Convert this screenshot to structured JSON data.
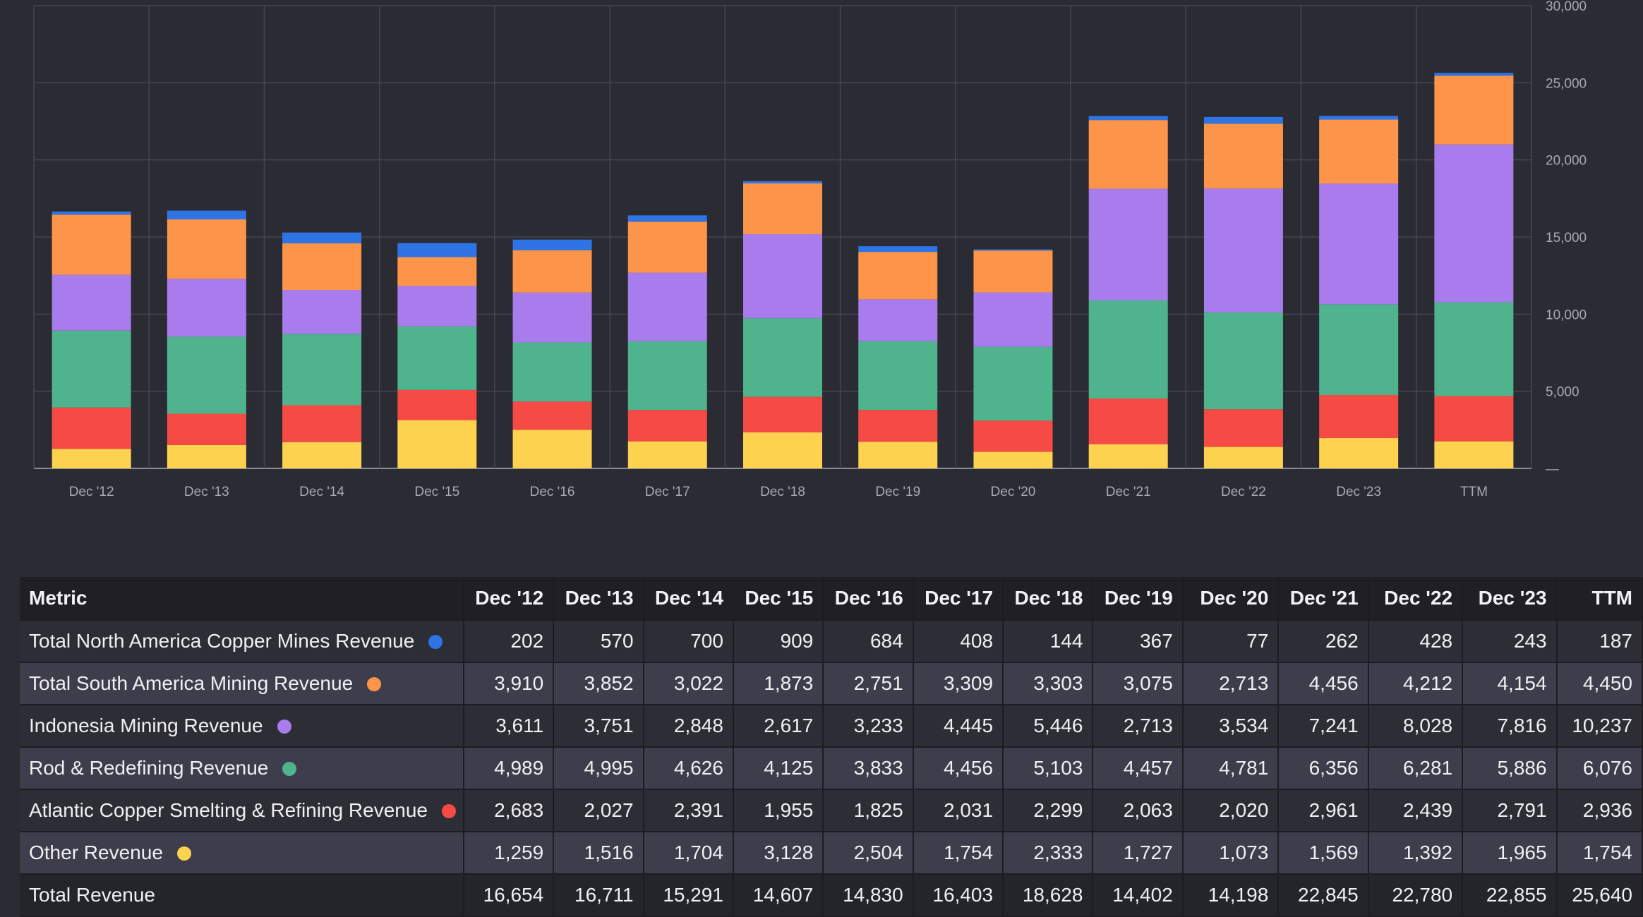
{
  "chart_data": {
    "type": "bar",
    "stacked": true,
    "categories": [
      "Dec '12",
      "Dec '13",
      "Dec '14",
      "Dec '15",
      "Dec '16",
      "Dec '17",
      "Dec '18",
      "Dec '19",
      "Dec '20",
      "Dec '21",
      "Dec '22",
      "Dec '23",
      "TTM"
    ],
    "series": [
      {
        "name": "Other Revenue",
        "color": "#fdd24e",
        "values": [
          1259,
          1516,
          1704,
          3128,
          2504,
          1754,
          2333,
          1727,
          1073,
          1569,
          1392,
          1965,
          1754
        ]
      },
      {
        "name": "Atlantic Copper Smelting & Refining Revenue",
        "color": "#f64b45",
        "values": [
          2683,
          2027,
          2391,
          1955,
          1825,
          2031,
          2299,
          2063,
          2020,
          2961,
          2439,
          2791,
          2936
        ]
      },
      {
        "name": "Rod & Redefining Revenue",
        "color": "#4fb38d",
        "values": [
          4989,
          4995,
          4626,
          4125,
          3833,
          4456,
          5103,
          4457,
          4781,
          6356,
          6281,
          5886,
          6076
        ]
      },
      {
        "name": "Indonesia Mining Revenue",
        "color": "#a87ced",
        "values": [
          3611,
          3751,
          2848,
          2617,
          3233,
          4445,
          5446,
          2713,
          3534,
          7241,
          8028,
          7816,
          10237
        ]
      },
      {
        "name": "Total South America Mining Revenue",
        "color": "#fc954a",
        "values": [
          3910,
          3852,
          3022,
          1873,
          2751,
          3309,
          3303,
          3075,
          2713,
          4456,
          4212,
          4154,
          4450
        ]
      },
      {
        "name": "Total North America Copper Mines Revenue",
        "color": "#2f74e4",
        "values": [
          202,
          570,
          700,
          909,
          684,
          408,
          144,
          367,
          77,
          262,
          428,
          243,
          187
        ]
      }
    ],
    "ylim": [
      0,
      30000
    ],
    "yticks": [
      "30,000",
      "25,000",
      "20,000",
      "15,000",
      "10,000",
      "5,000",
      "—"
    ],
    "ytick_values": [
      30000,
      25000,
      20000,
      15000,
      10000,
      5000,
      0
    ],
    "xticks": [
      "Dec '12",
      "Dec '13",
      "Dec '14",
      "Dec '15",
      "Dec '16",
      "Dec '17",
      "Dec '18",
      "Dec '19",
      "Dec '20",
      "Dec '21",
      "Dec '22",
      "Dec '23",
      "TTM"
    ],
    "grid": true
  },
  "table": {
    "header": {
      "metric": "Metric",
      "periods": [
        "Dec '12",
        "Dec '13",
        "Dec '14",
        "Dec '15",
        "Dec '16",
        "Dec '17",
        "Dec '18",
        "Dec '19",
        "Dec '20",
        "Dec '21",
        "Dec '22",
        "Dec '23",
        "TTM"
      ]
    },
    "rows": [
      {
        "metric": "Total North America Copper Mines Revenue",
        "dot_color": "#2f74e4",
        "values": [
          "202",
          "570",
          "700",
          "909",
          "684",
          "408",
          "144",
          "367",
          "77",
          "262",
          "428",
          "243",
          "187"
        ]
      },
      {
        "metric": "Total South America Mining Revenue",
        "dot_color": "#fc954a",
        "values": [
          "3,910",
          "3,852",
          "3,022",
          "1,873",
          "2,751",
          "3,309",
          "3,303",
          "3,075",
          "2,713",
          "4,456",
          "4,212",
          "4,154",
          "4,450"
        ]
      },
      {
        "metric": "Indonesia Mining Revenue",
        "dot_color": "#a87ced",
        "values": [
          "3,611",
          "3,751",
          "2,848",
          "2,617",
          "3,233",
          "4,445",
          "5,446",
          "2,713",
          "3,534",
          "7,241",
          "8,028",
          "7,816",
          "10,237"
        ]
      },
      {
        "metric": "Rod & Redefining Revenue",
        "dot_color": "#4fb38d",
        "values": [
          "4,989",
          "4,995",
          "4,626",
          "4,125",
          "3,833",
          "4,456",
          "5,103",
          "4,457",
          "4,781",
          "6,356",
          "6,281",
          "5,886",
          "6,076"
        ]
      },
      {
        "metric": "Atlantic Copper Smelting & Refining Revenue",
        "dot_color": "#f64b45",
        "values": [
          "2,683",
          "2,027",
          "2,391",
          "1,955",
          "1,825",
          "2,031",
          "2,299",
          "2,063",
          "2,020",
          "2,961",
          "2,439",
          "2,791",
          "2,936"
        ]
      },
      {
        "metric": "Other Revenue",
        "dot_color": "#fdd24e",
        "values": [
          "1,259",
          "1,516",
          "1,704",
          "3,128",
          "2,504",
          "1,754",
          "2,333",
          "1,727",
          "1,073",
          "1,569",
          "1,392",
          "1,965",
          "1,754"
        ]
      },
      {
        "metric": "Total Revenue",
        "dot_color": "",
        "values": [
          "16,654",
          "16,711",
          "15,291",
          "14,607",
          "14,830",
          "16,403",
          "18,628",
          "14,402",
          "14,198",
          "22,845",
          "22,780",
          "22,855",
          "25,640"
        ]
      }
    ]
  }
}
